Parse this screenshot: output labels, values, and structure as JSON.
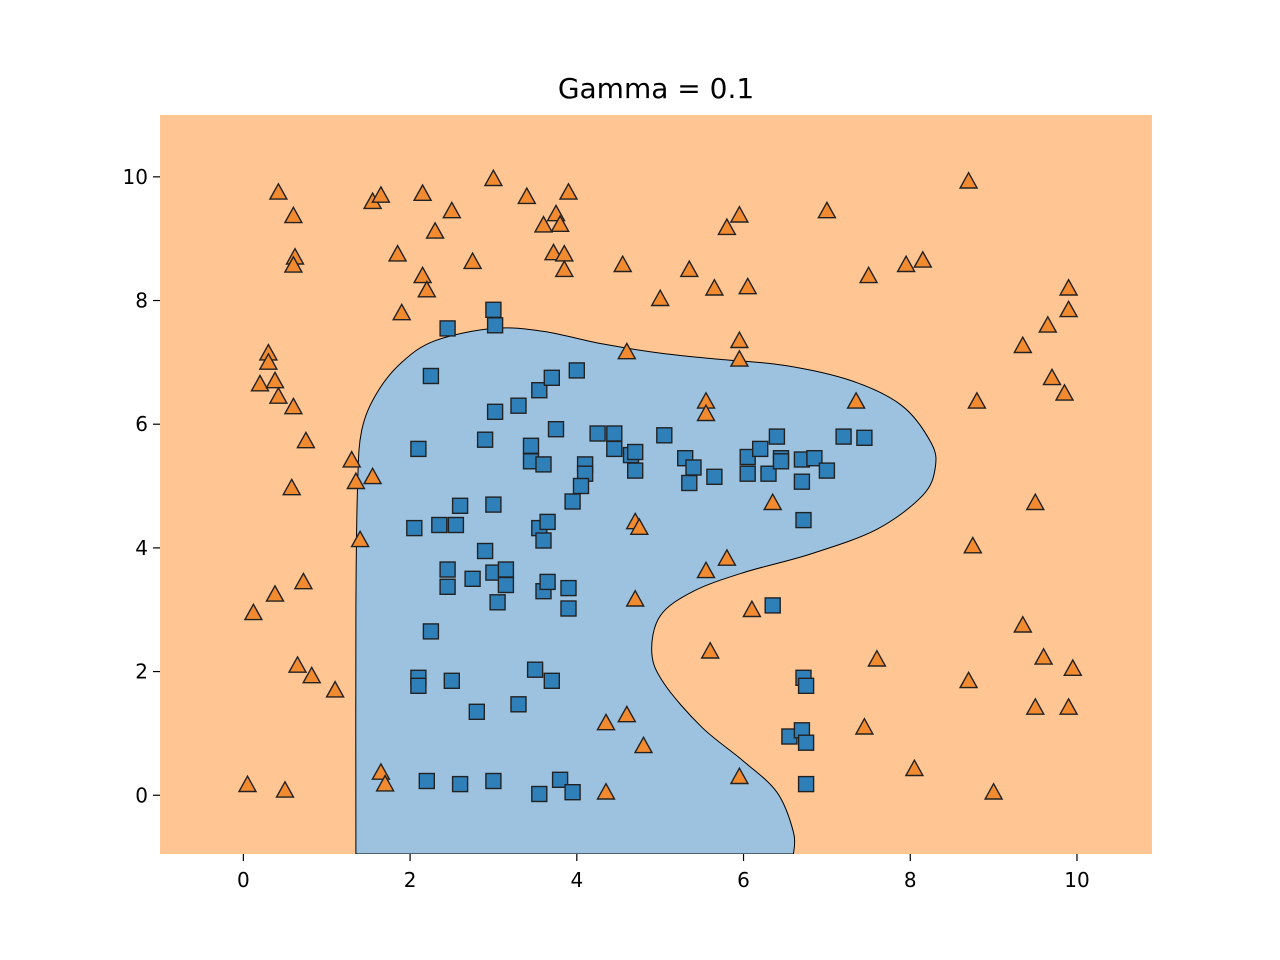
{
  "chart_data": {
    "type": "scatter",
    "title": "Gamma = 0.1",
    "xlabel": "",
    "ylabel": "",
    "xlim": [
      -1,
      10.9
    ],
    "ylim": [
      -0.95,
      11
    ],
    "x_ticks": [
      "0",
      "2",
      "4",
      "6",
      "8",
      "10"
    ],
    "y_ticks": [
      "0",
      "2",
      "4",
      "6",
      "8",
      "10"
    ],
    "grid": false,
    "legend": "none",
    "colors": {
      "background_region": "#ffc592",
      "inner_region": "#9cc2df",
      "class_0_marker": "#2f7fb9",
      "class_1_marker": "#f28a2f",
      "marker_edge": "#222222"
    },
    "decision_boundary": [
      [
        1.35,
        -0.95
      ],
      [
        1.35,
        3.0
      ],
      [
        1.37,
        5.0
      ],
      [
        1.42,
        5.9
      ],
      [
        1.6,
        6.5
      ],
      [
        1.9,
        7.0
      ],
      [
        2.3,
        7.35
      ],
      [
        3.0,
        7.55
      ],
      [
        3.6,
        7.5
      ],
      [
        4.3,
        7.3
      ],
      [
        5.0,
        7.15
      ],
      [
        5.7,
        7.05
      ],
      [
        6.5,
        6.95
      ],
      [
        7.3,
        6.7
      ],
      [
        7.9,
        6.3
      ],
      [
        8.25,
        5.7
      ],
      [
        8.3,
        5.3
      ],
      [
        8.15,
        4.85
      ],
      [
        7.6,
        4.3
      ],
      [
        6.8,
        3.9
      ],
      [
        6.0,
        3.6
      ],
      [
        5.4,
        3.3
      ],
      [
        5.0,
        2.9
      ],
      [
        4.9,
        2.3
      ],
      [
        5.05,
        1.8
      ],
      [
        5.5,
        1.1
      ],
      [
        6.0,
        0.55
      ],
      [
        6.4,
        0.05
      ],
      [
        6.6,
        -0.6
      ],
      [
        6.6,
        -0.95
      ]
    ],
    "series": [
      {
        "marker": "square",
        "points": [
          [
            2.45,
            7.55
          ],
          [
            3.0,
            7.85
          ],
          [
            3.02,
            7.6
          ],
          [
            2.25,
            6.78
          ],
          [
            3.3,
            6.3
          ],
          [
            3.02,
            6.2
          ],
          [
            3.55,
            6.55
          ],
          [
            3.7,
            6.75
          ],
          [
            4.0,
            6.87
          ],
          [
            3.75,
            5.92
          ],
          [
            2.1,
            5.6
          ],
          [
            2.9,
            5.75
          ],
          [
            3.45,
            5.65
          ],
          [
            3.45,
            5.4
          ],
          [
            3.6,
            5.35
          ],
          [
            4.1,
            5.35
          ],
          [
            4.1,
            5.2
          ],
          [
            4.05,
            5.0
          ],
          [
            3.95,
            4.75
          ],
          [
            4.25,
            5.85
          ],
          [
            4.45,
            5.85
          ],
          [
            4.45,
            5.6
          ],
          [
            4.65,
            5.5
          ],
          [
            4.7,
            5.55
          ],
          [
            4.7,
            5.25
          ],
          [
            5.05,
            5.82
          ],
          [
            5.3,
            5.45
          ],
          [
            5.4,
            5.3
          ],
          [
            5.35,
            5.05
          ],
          [
            5.65,
            5.15
          ],
          [
            6.05,
            5.47
          ],
          [
            6.05,
            5.2
          ],
          [
            6.2,
            5.6
          ],
          [
            6.3,
            5.2
          ],
          [
            6.4,
            5.8
          ],
          [
            6.45,
            5.45
          ],
          [
            6.45,
            5.4
          ],
          [
            6.7,
            5.43
          ],
          [
            6.85,
            5.45
          ],
          [
            7.0,
            5.25
          ],
          [
            7.2,
            5.8
          ],
          [
            7.45,
            5.78
          ],
          [
            6.7,
            5.07
          ],
          [
            6.72,
            4.45
          ],
          [
            2.05,
            4.32
          ],
          [
            2.35,
            4.37
          ],
          [
            2.55,
            4.37
          ],
          [
            2.6,
            4.68
          ],
          [
            3.0,
            4.7
          ],
          [
            3.55,
            4.32
          ],
          [
            3.65,
            4.42
          ],
          [
            3.6,
            4.12
          ],
          [
            2.9,
            3.95
          ],
          [
            2.45,
            3.65
          ],
          [
            2.45,
            3.37
          ],
          [
            2.75,
            3.5
          ],
          [
            3.0,
            3.6
          ],
          [
            3.15,
            3.65
          ],
          [
            3.15,
            3.4
          ],
          [
            3.05,
            3.12
          ],
          [
            3.6,
            3.3
          ],
          [
            3.65,
            3.45
          ],
          [
            3.9,
            3.35
          ],
          [
            3.9,
            3.02
          ],
          [
            2.25,
            2.65
          ],
          [
            2.1,
            1.9
          ],
          [
            2.1,
            1.77
          ],
          [
            2.5,
            1.85
          ],
          [
            3.5,
            2.03
          ],
          [
            3.7,
            1.85
          ],
          [
            3.3,
            1.47
          ],
          [
            2.8,
            1.35
          ],
          [
            6.35,
            3.07
          ],
          [
            6.72,
            1.9
          ],
          [
            6.75,
            1.77
          ],
          [
            6.55,
            0.95
          ],
          [
            6.7,
            1.05
          ],
          [
            6.75,
            0.85
          ],
          [
            6.75,
            0.18
          ],
          [
            2.2,
            0.23
          ],
          [
            2.6,
            0.18
          ],
          [
            3.0,
            0.23
          ],
          [
            3.55,
            0.02
          ],
          [
            3.8,
            0.25
          ],
          [
            3.95,
            0.05
          ]
        ]
      },
      {
        "marker": "triangle",
        "points": [
          [
            0.42,
            9.75
          ],
          [
            0.6,
            9.37
          ],
          [
            0.62,
            8.7
          ],
          [
            0.6,
            8.57
          ],
          [
            1.55,
            9.6
          ],
          [
            1.65,
            9.7
          ],
          [
            2.15,
            9.73
          ],
          [
            2.5,
            9.45
          ],
          [
            2.3,
            9.12
          ],
          [
            1.85,
            8.75
          ],
          [
            2.15,
            8.4
          ],
          [
            2.2,
            8.17
          ],
          [
            1.9,
            7.8
          ],
          [
            2.75,
            8.63
          ],
          [
            3.0,
            9.97
          ],
          [
            3.4,
            9.68
          ],
          [
            3.6,
            9.22
          ],
          [
            3.75,
            9.4
          ],
          [
            3.9,
            9.75
          ],
          [
            3.8,
            9.23
          ],
          [
            3.72,
            8.77
          ],
          [
            3.85,
            8.75
          ],
          [
            3.85,
            8.5
          ],
          [
            4.55,
            8.58
          ],
          [
            5.0,
            8.03
          ],
          [
            5.35,
            8.5
          ],
          [
            5.65,
            8.2
          ],
          [
            5.8,
            9.18
          ],
          [
            5.95,
            9.38
          ],
          [
            6.05,
            8.22
          ],
          [
            7.0,
            9.45
          ],
          [
            7.5,
            8.4
          ],
          [
            7.95,
            8.58
          ],
          [
            8.15,
            8.65
          ],
          [
            8.7,
            9.93
          ],
          [
            9.9,
            8.2
          ],
          [
            9.9,
            7.85
          ],
          [
            9.65,
            7.6
          ],
          [
            9.35,
            7.27
          ],
          [
            9.7,
            6.75
          ],
          [
            9.85,
            6.5
          ],
          [
            8.8,
            6.37
          ],
          [
            9.5,
            4.73
          ],
          [
            8.75,
            4.03
          ],
          [
            7.35,
            6.37
          ],
          [
            6.35,
            4.73
          ],
          [
            5.95,
            7.35
          ],
          [
            5.95,
            7.05
          ],
          [
            4.6,
            7.17
          ],
          [
            5.55,
            6.37
          ],
          [
            5.55,
            6.17
          ],
          [
            0.3,
            7.15
          ],
          [
            0.3,
            7.0
          ],
          [
            0.2,
            6.65
          ],
          [
            0.38,
            6.7
          ],
          [
            0.42,
            6.45
          ],
          [
            0.6,
            6.28
          ],
          [
            0.75,
            5.73
          ],
          [
            0.58,
            4.97
          ],
          [
            1.3,
            5.42
          ],
          [
            1.35,
            5.07
          ],
          [
            1.55,
            5.15
          ],
          [
            1.4,
            4.13
          ],
          [
            0.72,
            3.45
          ],
          [
            0.38,
            3.25
          ],
          [
            0.12,
            2.95
          ],
          [
            0.65,
            2.1
          ],
          [
            0.82,
            1.93
          ],
          [
            1.1,
            1.7
          ],
          [
            4.7,
            4.42
          ],
          [
            4.75,
            4.33
          ],
          [
            4.7,
            3.17
          ],
          [
            5.55,
            3.63
          ],
          [
            5.8,
            3.83
          ],
          [
            6.1,
            3.0
          ],
          [
            5.6,
            2.33
          ],
          [
            7.6,
            2.2
          ],
          [
            8.7,
            1.85
          ],
          [
            9.35,
            2.75
          ],
          [
            9.6,
            2.23
          ],
          [
            9.95,
            2.05
          ],
          [
            9.5,
            1.42
          ],
          [
            9.9,
            1.42
          ],
          [
            7.45,
            1.1
          ],
          [
            4.35,
            1.17
          ],
          [
            4.6,
            1.3
          ],
          [
            4.8,
            0.8
          ],
          [
            5.95,
            0.3
          ],
          [
            8.05,
            0.43
          ],
          [
            9.0,
            0.05
          ],
          [
            4.35,
            0.05
          ],
          [
            1.65,
            0.37
          ],
          [
            1.7,
            0.18
          ],
          [
            0.05,
            0.17
          ],
          [
            0.5,
            0.08
          ]
        ]
      }
    ]
  }
}
